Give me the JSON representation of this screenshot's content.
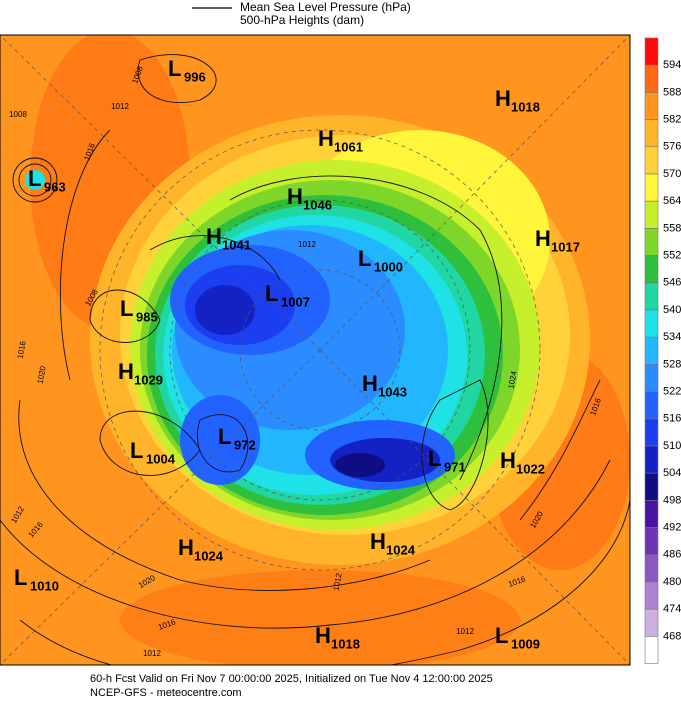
{
  "legend": {
    "lines": [
      "Mean Sea Level Pressure (hPa)",
      "500-hPa Heights (dam)"
    ]
  },
  "colorbar": {
    "ticks": [
      594,
      588,
      582,
      576,
      570,
      564,
      558,
      552,
      546,
      540,
      534,
      528,
      522,
      516,
      510,
      504,
      498,
      492,
      486,
      480,
      474,
      468
    ],
    "colors": [
      "#ff0a0a",
      "#ff6a10",
      "#ff951e",
      "#ffb42a",
      "#ffd23a",
      "#fff53a",
      "#c6ef2c",
      "#7fd62a",
      "#2ebf3c",
      "#20d6a2",
      "#1ee2e6",
      "#22b6ff",
      "#2a8cff",
      "#2262ff",
      "#1a3ef0",
      "#1422c4",
      "#0e0e82",
      "#4a12a0",
      "#6c34b2",
      "#8c58c4",
      "#ac82d2",
      "#cdb0e2",
      "#ffffff"
    ]
  },
  "centers": [
    {
      "letter": "L",
      "value": "996"
    },
    {
      "letter": "L",
      "value": "963"
    },
    {
      "letter": "H",
      "value": "1018"
    },
    {
      "letter": "H",
      "value": "1061"
    },
    {
      "letter": "H",
      "value": "1046"
    },
    {
      "letter": "H",
      "value": "1041"
    },
    {
      "letter": "H",
      "value": "1017"
    },
    {
      "letter": "L",
      "value": "1000"
    },
    {
      "letter": "L",
      "value": "1007"
    },
    {
      "letter": "L",
      "value": "985"
    },
    {
      "letter": "H",
      "value": "1029"
    },
    {
      "letter": "H",
      "value": "1043"
    },
    {
      "letter": "L",
      "value": "972"
    },
    {
      "letter": "L",
      "value": "1004"
    },
    {
      "letter": "L",
      "value": "971"
    },
    {
      "letter": "H",
      "value": "1022"
    },
    {
      "letter": "H",
      "value": "1024"
    },
    {
      "letter": "H",
      "value": "1024"
    },
    {
      "letter": "L",
      "value": "1010"
    },
    {
      "letter": "H",
      "value": "1018"
    },
    {
      "letter": "L",
      "value": "1009"
    }
  ],
  "isobar_labels": [
    "1008",
    "1012",
    "1016",
    "1008",
    "1008",
    "1016",
    "1020",
    "1012",
    "1016",
    "1020",
    "1016",
    "1012",
    "1012",
    "1016",
    "1020",
    "1016",
    "1012",
    "1024",
    "1012"
  ],
  "footer": [
    "60-h Fcst Valid on Fri Nov  7 00:00:00 2025, Initialized on Tue Nov  4 12:00:00 2025",
    "NCEP-GFS - meteocentre.com"
  ]
}
